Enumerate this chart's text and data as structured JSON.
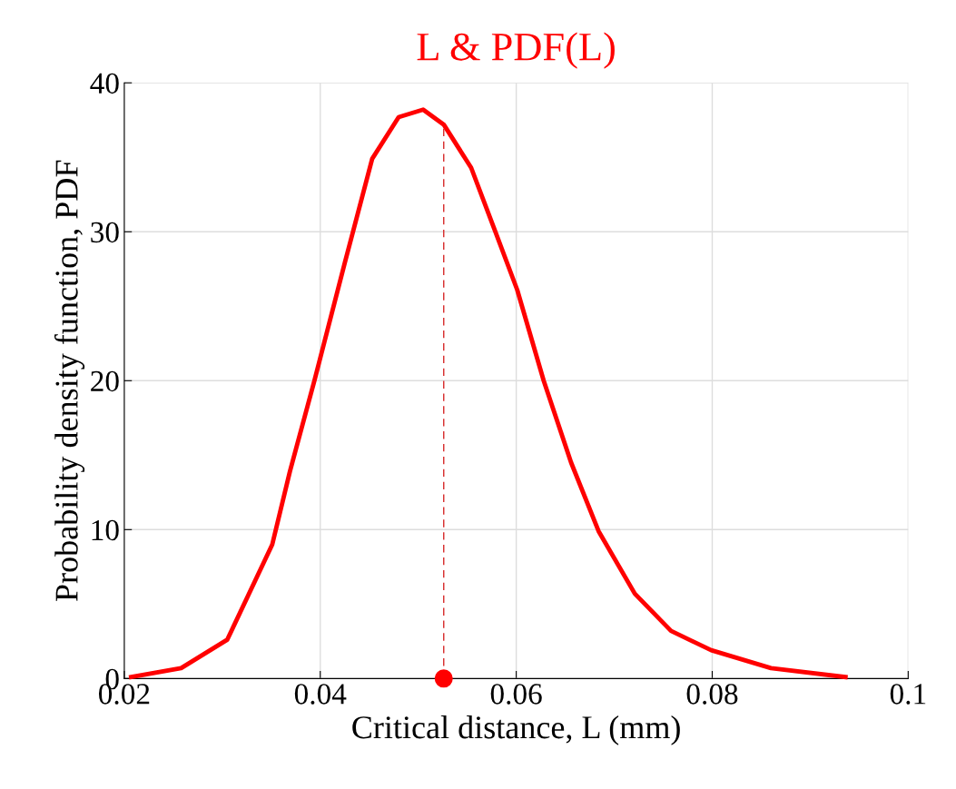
{
  "chart_data": {
    "type": "line",
    "title": "L & PDF(L)",
    "xlabel": "Critical distance, L (mm)",
    "ylabel": "Probability density function, PDF",
    "xlim": [
      0.02,
      0.1
    ],
    "xticks": [
      {
        "value": 0.02,
        "label": "0.02"
      },
      {
        "value": 0.04,
        "label": "0.04"
      },
      {
        "value": 0.06,
        "label": "0.06"
      },
      {
        "value": 0.08,
        "label": "0.08"
      },
      {
        "value": 0.1,
        "label": "0.1"
      }
    ],
    "ylim": [
      0,
      40
    ],
    "yticks": [
      0,
      10,
      20,
      30,
      40
    ],
    "grid": true,
    "series": [
      {
        "color": "#ff0000",
        "line_style": "solid",
        "x": [
          0.0207,
          0.0258,
          0.0305,
          0.0351,
          0.0369,
          0.0394,
          0.0425,
          0.0453,
          0.048,
          0.0505,
          0.0526,
          0.0554,
          0.0577,
          0.0601,
          0.0628,
          0.0656,
          0.0684,
          0.0721,
          0.0758,
          0.0799,
          0.086,
          0.0936
        ],
        "values": [
          0.1,
          0.7,
          2.6,
          9.0,
          13.9,
          20.0,
          27.9,
          34.9,
          37.7,
          38.2,
          37.2,
          34.3,
          30.3,
          26.1,
          20.0,
          14.5,
          9.9,
          5.7,
          3.2,
          1.9,
          0.7,
          0.1
        ]
      },
      {
        "type": "line",
        "color": "#d62728",
        "line_style": "dashed",
        "x": [
          0.0526,
          0.0526
        ],
        "values": [
          0,
          37.2
        ]
      },
      {
        "type": "scatter",
        "color": "#ff0000",
        "marker": "circle",
        "x": [
          0.0526
        ],
        "values": [
          0
        ]
      }
    ]
  }
}
